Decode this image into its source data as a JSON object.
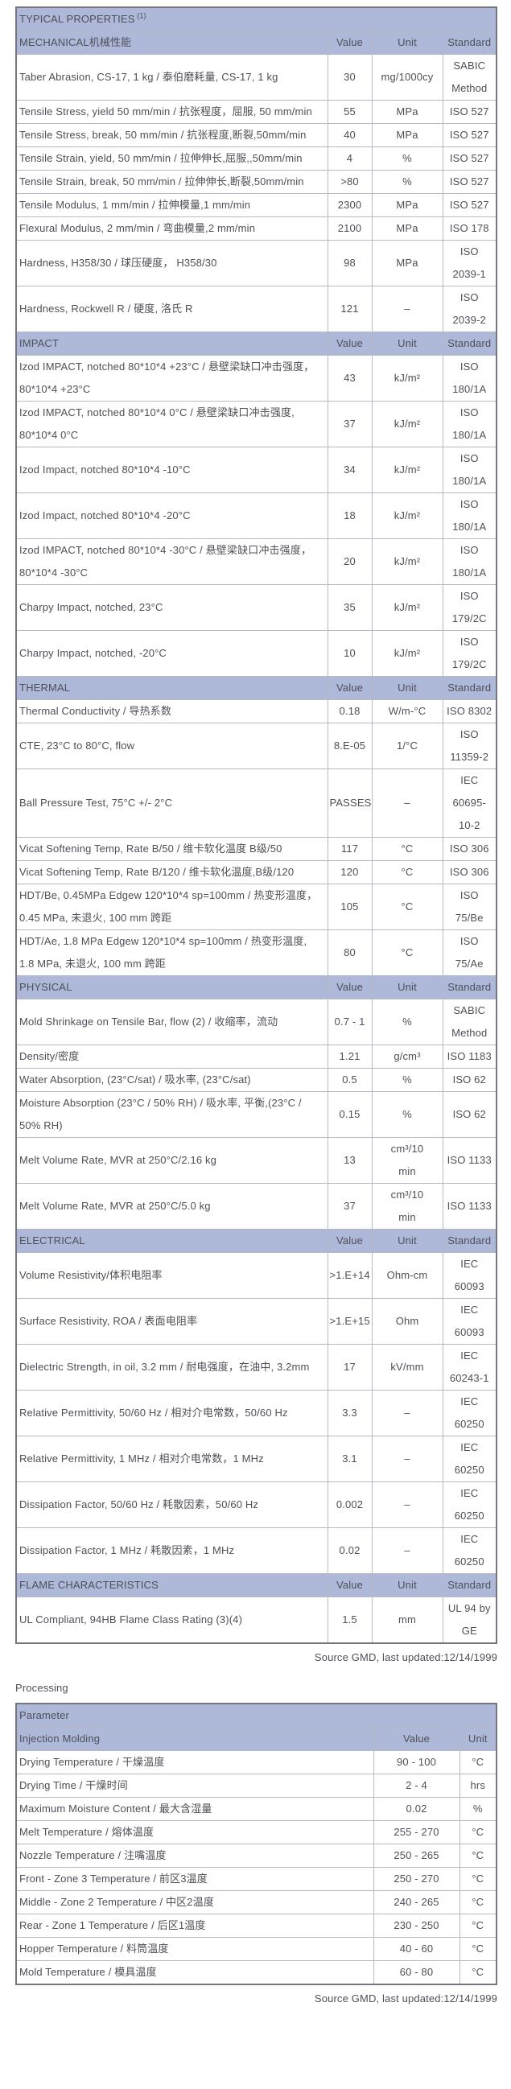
{
  "colors": {
    "header_bg": "#aeb8d8",
    "text": "#4e4f57",
    "border_inner": "#b6b9c2",
    "border_outer": "#74777f"
  },
  "table1": {
    "title": "TYPICAL PROPERTIES",
    "title_sup": "(1)",
    "col_headers": [
      "Value",
      "Unit",
      "Standard"
    ],
    "sections": [
      {
        "label": "MECHANICAL机械性能",
        "rows": [
          {
            "property": "Taber Abrasion, CS-17, 1 kg / 泰伯磨耗量, CS-17, 1 kg",
            "value": "30",
            "unit": "mg/1000cy",
            "standard": "SABIC\nMethod"
          },
          {
            "property": "Tensile Stress, yield 50 mm/min / 抗张程度，屈服, 50 mm/min",
            "value": "55",
            "unit": "MPa",
            "standard": "ISO 527"
          },
          {
            "property": "Tensile Stress, break, 50 mm/min / 抗张程度,断裂,50mm/min",
            "value": "40",
            "unit": "MPa",
            "standard": "ISO 527"
          },
          {
            "property": "Tensile Strain, yield, 50 mm/min / 拉伸伸长,屈服,,50mm/min",
            "value": "4",
            "unit": "%",
            "standard": "ISO 527"
          },
          {
            "property": "Tensile Strain, break, 50 mm/min / 拉伸伸长,断裂,50mm/min",
            "value": ">80",
            "unit": "%",
            "standard": "ISO 527"
          },
          {
            "property": "Tensile Modulus, 1 mm/min / 拉伸模量,1 mm/min",
            "value": "2300",
            "unit": "MPa",
            "standard": "ISO 527"
          },
          {
            "property": "Flexural Modulus, 2 mm/min / 弯曲模量,2 mm/min",
            "value": "2100",
            "unit": "MPa",
            "standard": "ISO 178"
          },
          {
            "property": "Hardness, H358/30 / 球压硬度， H358/30",
            "value": "98",
            "unit": "MPa",
            "standard": "ISO\n2039-1"
          },
          {
            "property": "Hardness, Rockwell R / 硬度, 洛氏 R",
            "value": "121",
            "unit": "–",
            "standard": "ISO\n2039-2"
          }
        ]
      },
      {
        "label": "IMPACT",
        "rows": [
          {
            "property": "Izod IMPACT, notched 80*10*4 +23°C / 悬壁梁缺口冲击强度，80*10*4 +23°C",
            "value": "43",
            "unit": "kJ/m²",
            "standard": "ISO\n180/1A"
          },
          {
            "property": "Izod IMPACT, notched 80*10*4 0°C / 悬壁梁缺口冲击强度, 80*10*4 0°C",
            "value": "37",
            "unit": "kJ/m²",
            "standard": "ISO\n180/1A"
          },
          {
            "property": "Izod Impact, notched 80*10*4 -10°C",
            "value": "34",
            "unit": "kJ/m²",
            "standard": "ISO\n180/1A"
          },
          {
            "property": "Izod Impact, notched 80*10*4 -20°C",
            "value": "18",
            "unit": "kJ/m²",
            "standard": "ISO\n180/1A"
          },
          {
            "property": "Izod IMPACT, notched 80*10*4 -30°C / 悬壁梁缺口冲击强度，80*10*4 -30°C",
            "value": "20",
            "unit": "kJ/m²",
            "standard": "ISO\n180/1A"
          },
          {
            "property": "Charpy Impact, notched, 23°C",
            "value": "35",
            "unit": "kJ/m²",
            "standard": "ISO\n179/2C"
          },
          {
            "property": "Charpy Impact, notched, -20°C",
            "value": "10",
            "unit": "kJ/m²",
            "standard": "ISO\n179/2C"
          }
        ]
      },
      {
        "label": "THERMAL",
        "rows": [
          {
            "property": "Thermal Conductivity / 导热系数",
            "value": "0.18",
            "unit": "W/m-°C",
            "standard": "ISO 8302"
          },
          {
            "property": "CTE, 23°C to 80°C, flow",
            "value": "8.E-05",
            "unit": "1/°C",
            "standard": "ISO\n11359-2"
          },
          {
            "property": "Ball Pressure Test, 75°C +/- 2°C",
            "value": "PASSES",
            "unit": "–",
            "standard": "IEC\n60695-\n10-2"
          },
          {
            "property": "Vicat Softening Temp, Rate B/50 / 维卡软化温度 B级/50",
            "value": "117",
            "unit": "°C",
            "standard": "ISO 306"
          },
          {
            "property": "Vicat Softening Temp, Rate B/120 / 维卡软化温度,B级/120",
            "value": "120",
            "unit": "°C",
            "standard": "ISO 306"
          },
          {
            "property": "HDT/Be, 0.45MPa Edgew 120*10*4 sp=100mm / 热变形温度，0.45 MPa, 未退火, 100 mm 跨距",
            "value": "105",
            "unit": "°C",
            "standard": "ISO\n75/Be"
          },
          {
            "property": "HDT/Ae, 1.8 MPa Edgew 120*10*4 sp=100mm / 热变形温度, 1.8 MPa, 未退火, 100 mm 跨距",
            "value": "80",
            "unit": "°C",
            "standard": "ISO\n75/Ae"
          }
        ]
      },
      {
        "label": "PHYSICAL",
        "rows": [
          {
            "property": "Mold Shrinkage on Tensile Bar, flow (2) / 收缩率，流动",
            "value": "0.7 - 1",
            "unit": "%",
            "standard": "SABIC\nMethod"
          },
          {
            "property": "Density/密度",
            "value": "1.21",
            "unit": "g/cm³",
            "standard": "ISO 1183"
          },
          {
            "property": "Water Absorption, (23°C/sat) / 吸水率, (23°C/sat)",
            "value": "0.5",
            "unit": "%",
            "standard": "ISO 62"
          },
          {
            "property": "Moisture Absorption (23°C / 50% RH) / 吸水率, 平衡,(23°C / 50% RH)",
            "value": "0.15",
            "unit": "%",
            "standard": "ISO 62"
          },
          {
            "property": "Melt Volume Rate, MVR at 250°C/2.16 kg",
            "value": "13",
            "unit": "cm³/10\nmin",
            "standard": "ISO 1133"
          },
          {
            "property": "Melt Volume Rate, MVR at 250°C/5.0 kg",
            "value": "37",
            "unit": "cm³/10\nmin",
            "standard": "ISO 1133"
          }
        ]
      },
      {
        "label": "ELECTRICAL",
        "rows": [
          {
            "property": "Volume Resistivity/体积电阻率",
            "value": ">1.E+14",
            "unit": "Ohm-cm",
            "standard": "IEC\n60093"
          },
          {
            "property": "Surface Resistivity, ROA / 表面电阻率",
            "value": ">1.E+15",
            "unit": "Ohm",
            "standard": "IEC\n60093"
          },
          {
            "property": "Dielectric Strength, in oil, 3.2 mm / 耐电强度，在油中, 3.2mm",
            "value": "17",
            "unit": "kV/mm",
            "standard": "IEC\n60243-1"
          },
          {
            "property": "Relative Permittivity, 50/60 Hz / 相对介电常数，50/60 Hz",
            "value": "3.3",
            "unit": "–",
            "standard": "IEC\n60250"
          },
          {
            "property": "Relative Permittivity, 1 MHz / 相对介电常数，1 MHz",
            "value": "3.1",
            "unit": "–",
            "standard": "IEC\n60250"
          },
          {
            "property": "Dissipation Factor, 50/60 Hz / 耗散因素，50/60 Hz",
            "value": "0.002",
            "unit": "–",
            "standard": "IEC\n60250"
          },
          {
            "property": "Dissipation Factor, 1 MHz / 耗散因素，1 MHz",
            "value": "0.02",
            "unit": "–",
            "standard": "IEC\n60250"
          }
        ]
      },
      {
        "label": "FLAME CHARACTERISTICS",
        "rows": [
          {
            "property": "UL Compliant, 94HB Flame Class Rating (3)(4)",
            "value": "1.5",
            "unit": "mm",
            "standard": "UL 94 by\nGE"
          }
        ]
      }
    ],
    "source_note": "Source GMD, last updated:12/14/1999"
  },
  "processing": {
    "heading": "Processing",
    "table": {
      "param_header": "Parameter",
      "subheader": "Injection Molding",
      "col_headers": [
        "Value",
        "Unit"
      ],
      "rows": [
        {
          "parameter": "Drying Temperature / 干燥温度",
          "value": "90 - 100",
          "unit": "°C"
        },
        {
          "parameter": "Drying Time / 干燥时间",
          "value": "2 - 4",
          "unit": "hrs"
        },
        {
          "parameter": "Maximum Moisture Content / 最大含湿量",
          "value": "0.02",
          "unit": "%"
        },
        {
          "parameter": "Melt Temperature / 熔体温度",
          "value": "255 - 270",
          "unit": "°C"
        },
        {
          "parameter": "Nozzle Temperature / 注嘴温度",
          "value": "250 - 265",
          "unit": "°C"
        },
        {
          "parameter": "Front - Zone 3 Temperature / 前区3温度",
          "value": "250 - 270",
          "unit": "°C"
        },
        {
          "parameter": "Middle - Zone 2 Temperature / 中区2温度",
          "value": "240 - 265",
          "unit": "°C"
        },
        {
          "parameter": "Rear - Zone 1 Temperature / 后区1温度",
          "value": "230 - 250",
          "unit": "°C"
        },
        {
          "parameter": "Hopper Temperature / 料筒温度",
          "value": "40 - 60",
          "unit": "°C"
        },
        {
          "parameter": "Mold Temperature / 模具温度",
          "value": "60 - 80",
          "unit": "°C"
        }
      ]
    },
    "source_note": "Source GMD, last updated:12/14/1999"
  }
}
